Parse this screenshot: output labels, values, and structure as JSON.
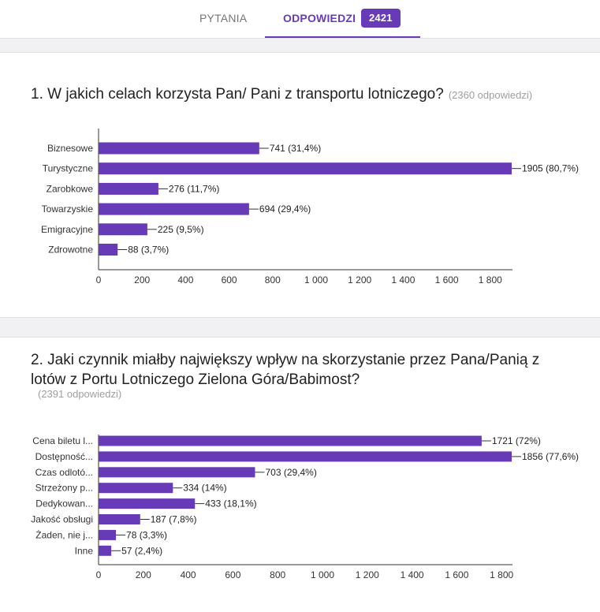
{
  "tabs": {
    "questions_label": "PYTANIA",
    "responses_label": "ODPOWIEDZI",
    "responses_count": "2421"
  },
  "colors": {
    "accent": "#673ab7",
    "bar": "#673ab7"
  },
  "questions": [
    {
      "title": "1. W jakich celach korzysta Pan/ Pani z transportu lotniczego?",
      "responses": "(2360 odpowiedzi)"
    },
    {
      "title_line1": "2. Jaki czynnik miałby największy wpływ na skorzystanie przez Pana/Panią z",
      "title_line2": "lotów z Portu Lotniczego Zielona Góra/Babimost?",
      "responses": "(2391 odpowiedzi)"
    }
  ],
  "chart_data": [
    {
      "type": "bar",
      "orientation": "horizontal",
      "categories": [
        "Biznesowe",
        "Turystyczne",
        "Zarobkowe",
        "Towarzyskie",
        "Emigracyjne",
        "Zdrowotne"
      ],
      "values": [
        741,
        1905,
        276,
        694,
        225,
        88
      ],
      "data_labels": [
        "741 (31,4%)",
        "1905 (80,7%)",
        "276 (11,7%)",
        "694 (29,4%)",
        "225 (9,5%)",
        "88 (3,7%)"
      ],
      "x_ticks": [
        "0",
        "200",
        "400",
        "600",
        "800",
        "1 000",
        "1 200",
        "1 400",
        "1 600",
        "1 800"
      ],
      "xlim": [
        0,
        1905
      ],
      "grid": false
    },
    {
      "type": "bar",
      "orientation": "horizontal",
      "categories": [
        "Cena biletu l...",
        "Dostępność...",
        "Czas odlotó...",
        "Strzeżony p...",
        "Dedykowan...",
        "Jakość obsługi",
        "Żaden, nie j...",
        "Inne"
      ],
      "values": [
        1721,
        1856,
        703,
        334,
        433,
        187,
        78,
        57
      ],
      "data_labels": [
        "1721 (72%)",
        "1856 (77,6%)",
        "703 (29,4%)",
        "334 (14%)",
        "433 (18,1%)",
        "187 (7,8%)",
        "78 (3,3%)",
        "57 (2,4%)"
      ],
      "x_ticks": [
        "0",
        "200",
        "400",
        "600",
        "800",
        "1 000",
        "1 200",
        "1 400",
        "1 600",
        "1 800"
      ],
      "xlim": [
        0,
        1856
      ],
      "grid": false
    }
  ]
}
